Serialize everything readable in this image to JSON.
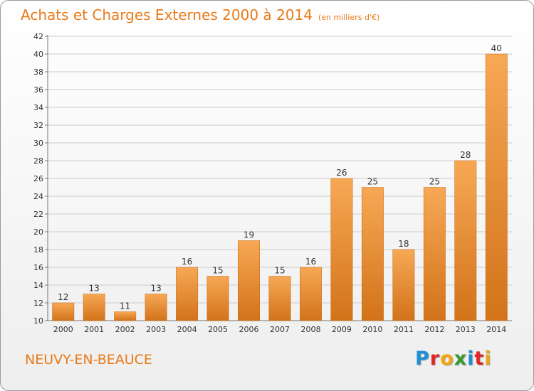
{
  "header": {
    "title": "Achats et Charges Externes 2000 à 2014",
    "subtitle": "(en milliers d'€)"
  },
  "footer": {
    "commune": "NEUVY-EN-BEAUCE",
    "logo_letters": [
      {
        "char": "P",
        "color": "#1e8fd6"
      },
      {
        "char": "r",
        "color": "#e02525"
      },
      {
        "char": "o",
        "color": "#f2a50c"
      },
      {
        "char": "x",
        "color": "#3a9a2e"
      },
      {
        "char": "i",
        "color": "#1e8fd6"
      },
      {
        "char": "t",
        "color": "#e02525"
      },
      {
        "char": "i",
        "color": "#f2a50c"
      }
    ]
  },
  "colors": {
    "bar_light": "#f7a855",
    "bar_dark": "#d2731a",
    "accent": "#ea7a18",
    "grid": "#cccccc",
    "axis": "#777777"
  },
  "chart_data": {
    "type": "bar",
    "title": "Achats et Charges Externes 2000 à 2014",
    "categories": [
      "2000",
      "2001",
      "2002",
      "2003",
      "2004",
      "2005",
      "2006",
      "2007",
      "2008",
      "2009",
      "2010",
      "2011",
      "2012",
      "2013",
      "2014"
    ],
    "values": [
      12,
      13,
      11,
      13,
      16,
      15,
      19,
      15,
      16,
      26,
      25,
      18,
      25,
      28,
      40
    ],
    "ylim": [
      10,
      42
    ],
    "yticks": [
      10,
      12,
      14,
      16,
      18,
      20,
      22,
      24,
      26,
      28,
      30,
      32,
      34,
      36,
      38,
      40,
      42
    ],
    "ytick_labels": [
      "10",
      "12",
      "14",
      "16",
      "18",
      "20",
      "22",
      "24",
      "26",
      "28",
      "30",
      "32",
      "34",
      "36",
      "38",
      "40",
      "42"
    ],
    "grid": true,
    "data_labels": true
  }
}
